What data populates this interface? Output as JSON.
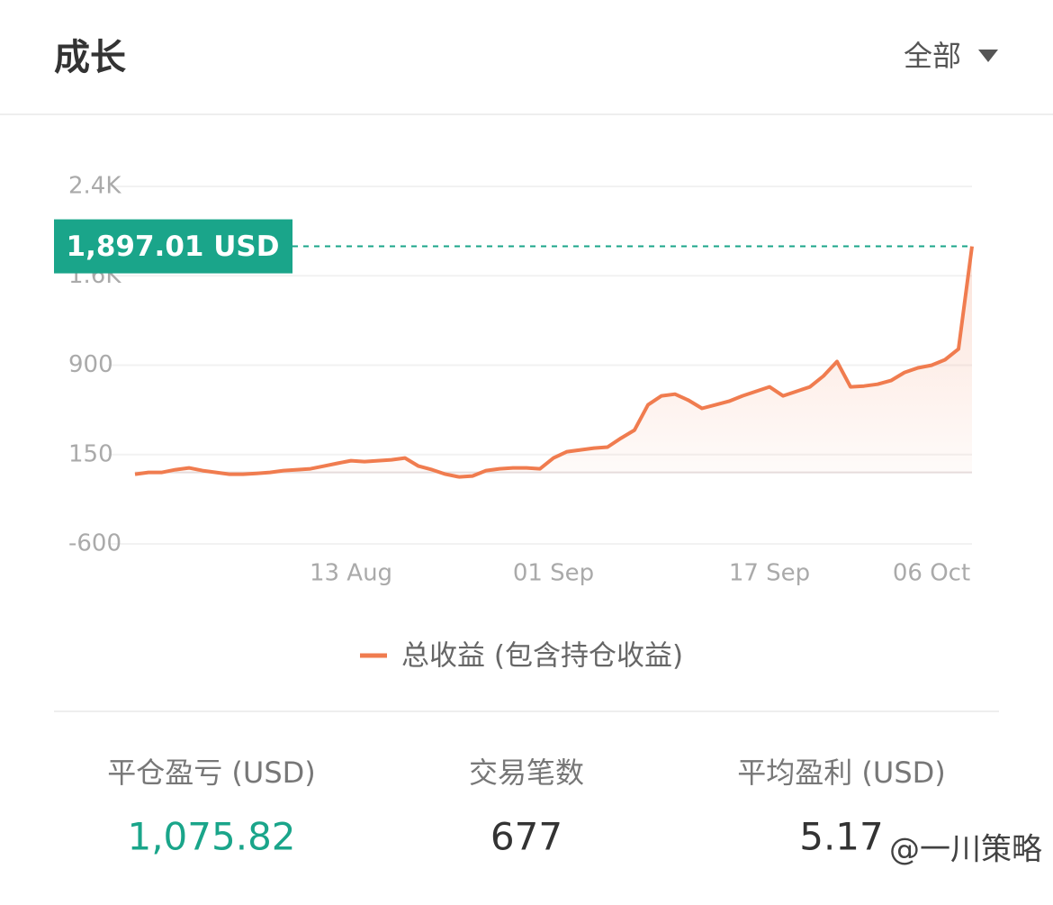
{
  "header": {
    "title": "成长",
    "filter": "全部"
  },
  "chart_data": {
    "type": "line",
    "categories": [
      null,
      null,
      null,
      null,
      null,
      null,
      null,
      null,
      null,
      null,
      null,
      null,
      null,
      null,
      null,
      null,
      "13 Aug",
      null,
      null,
      null,
      null,
      null,
      null,
      null,
      null,
      null,
      null,
      null,
      null,
      null,
      null,
      "01 Sep",
      null,
      null,
      null,
      null,
      null,
      null,
      null,
      null,
      null,
      null,
      null,
      null,
      null,
      null,
      null,
      "17 Sep",
      null,
      null,
      null,
      null,
      null,
      null,
      null,
      null,
      null,
      null,
      null,
      "06 Oct",
      null,
      null,
      null
    ],
    "series": [
      {
        "name": "总收益 (包含持仓收益)",
        "color": "#f07c4f",
        "values": [
          -15,
          0,
          0,
          23,
          38,
          15,
          0,
          -15,
          -15,
          -8,
          0,
          15,
          23,
          30,
          53,
          76,
          98,
          91,
          98,
          106,
          121,
          53,
          23,
          -15,
          -38,
          -30,
          15,
          30,
          38,
          38,
          30,
          121,
          174,
          189,
          204,
          212,
          287,
          355,
          567,
          642,
          657,
          605,
          537,
          567,
          597,
          642,
          680,
          718,
          642,
          680,
          718,
          809,
          930,
          718,
          725,
          740,
          771,
          839,
          877,
          899,
          945,
          1035,
          1897.01
        ],
        "value_labels": [
          null,
          null,
          null,
          null,
          null,
          null,
          null,
          null,
          null,
          null,
          null,
          null,
          null,
          null,
          null,
          null,
          null,
          null,
          null,
          null,
          null,
          null,
          null,
          null,
          null,
          null,
          null,
          null,
          null,
          null,
          null,
          null,
          null,
          null,
          null,
          null,
          null,
          null,
          null,
          null,
          null,
          null,
          null,
          null,
          null,
          null,
          null,
          null,
          null,
          null,
          null,
          null,
          null,
          null,
          null,
          null,
          null,
          null,
          null,
          null,
          null,
          null,
          "1,897.01 USD"
        ]
      }
    ],
    "ylim": [
      -600,
      2400
    ],
    "yticks": [
      -600,
      150,
      900,
      {
        "value": 1650,
        "label": "1.6K"
      },
      {
        "value": 2400,
        "label": "2.4K"
      }
    ],
    "grid": true,
    "legend": "bottom"
  },
  "stats": [
    {
      "label": "平仓盈亏 (USD)",
      "value": "1,075.82"
    },
    {
      "label": "交易笔数",
      "value": "677"
    },
    {
      "label": "平均盈利 (USD)",
      "value": "5.17"
    }
  ],
  "watermark": "@一川策略"
}
